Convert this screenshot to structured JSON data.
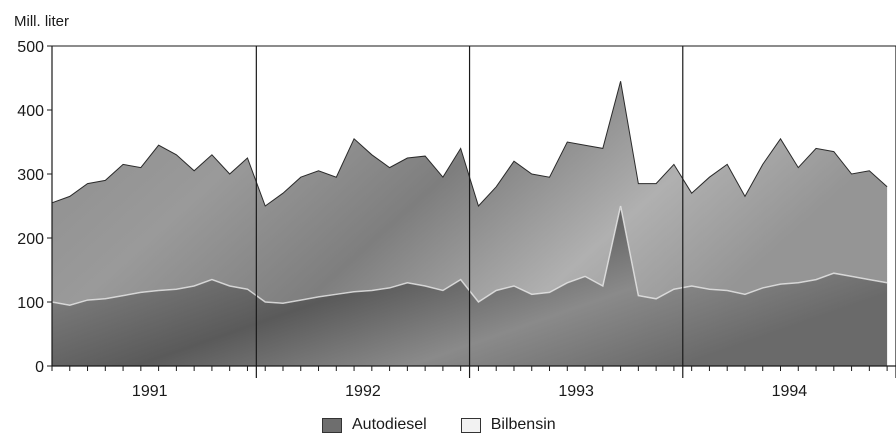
{
  "chart_data": {
    "type": "area",
    "unit_label": "Mill. liter",
    "ylim": [
      0,
      500
    ],
    "y_ticks": [
      0,
      100,
      200,
      300,
      400,
      500
    ],
    "years": [
      "1991",
      "1992",
      "1993",
      "1994"
    ],
    "legend_position": "bottom",
    "series": [
      {
        "name": "Autodiesel",
        "color": "#6e6e6e",
        "values": [
          100,
          95,
          103,
          105,
          110,
          115,
          118,
          120,
          125,
          135,
          125,
          120,
          100,
          98,
          103,
          108,
          112,
          116,
          118,
          122,
          130,
          125,
          118,
          135,
          100,
          118,
          125,
          112,
          115,
          130,
          140,
          125,
          250,
          110,
          105,
          120,
          125,
          120,
          118,
          112,
          122,
          128,
          130,
          135,
          145,
          140,
          135,
          130
        ]
      },
      {
        "name": "Bilbensin",
        "color": "#f2f2f2",
        "values": [
          255,
          265,
          285,
          290,
          315,
          310,
          345,
          330,
          305,
          330,
          300,
          325,
          250,
          270,
          295,
          305,
          295,
          355,
          330,
          310,
          325,
          328,
          295,
          340,
          250,
          280,
          320,
          300,
          295,
          350,
          345,
          340,
          445,
          285,
          285,
          315,
          270,
          295,
          315,
          265,
          315,
          355,
          310,
          340,
          335,
          300,
          305,
          280
        ]
      }
    ]
  }
}
